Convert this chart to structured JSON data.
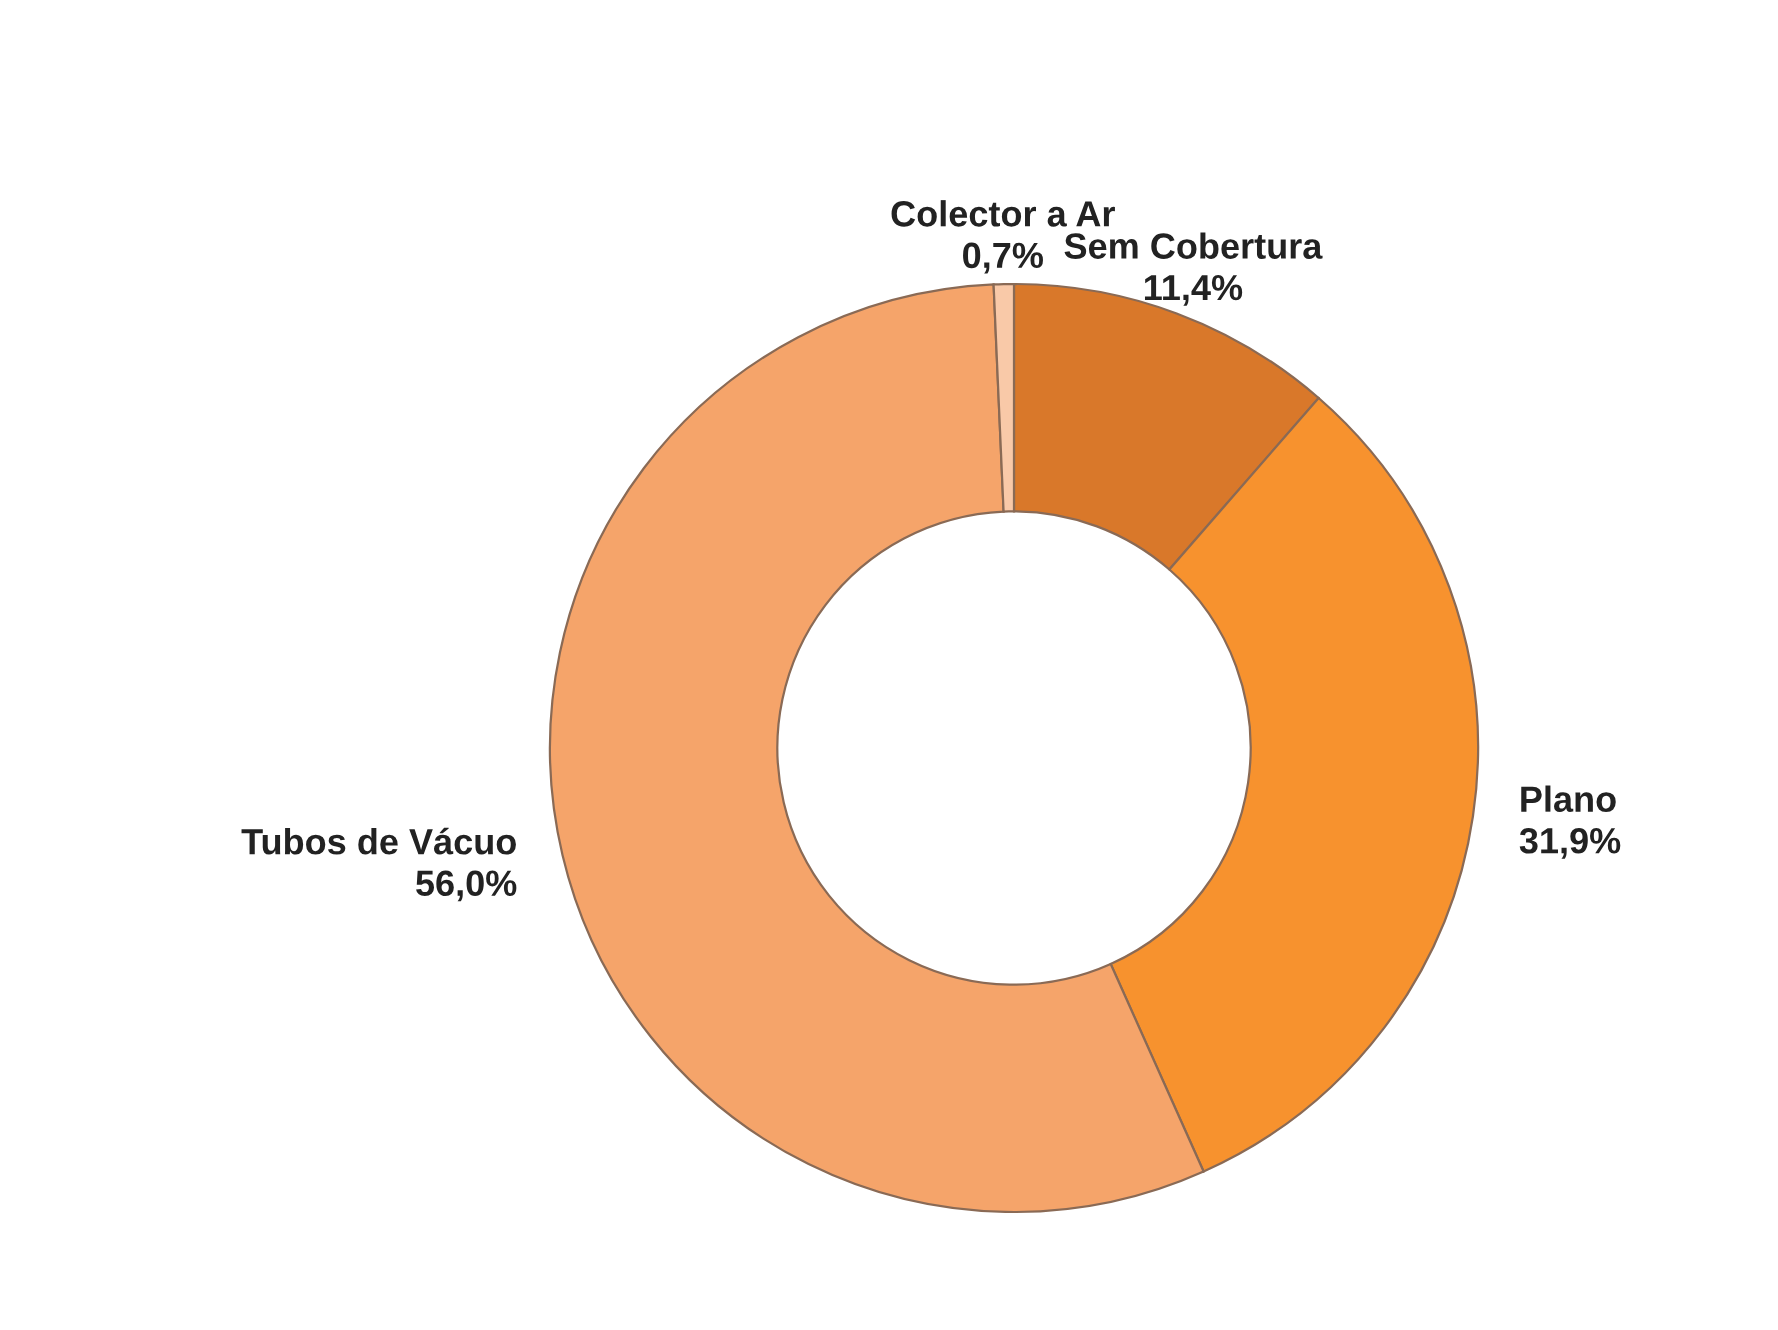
{
  "chart_data": {
    "type": "donut",
    "categories": [
      "Sem Cobertura",
      "Plano",
      "Tubos de Vácuo",
      "Colector a Ar"
    ],
    "values": [
      11.4,
      31.9,
      56.0,
      0.7
    ],
    "value_labels": [
      "11,4%",
      "31,9%",
      "56,0%",
      "0,7%"
    ],
    "colors": [
      "#d9782a",
      "#f7922e",
      "#f5a46a",
      "#f9c9a8"
    ],
    "legend": false
  }
}
